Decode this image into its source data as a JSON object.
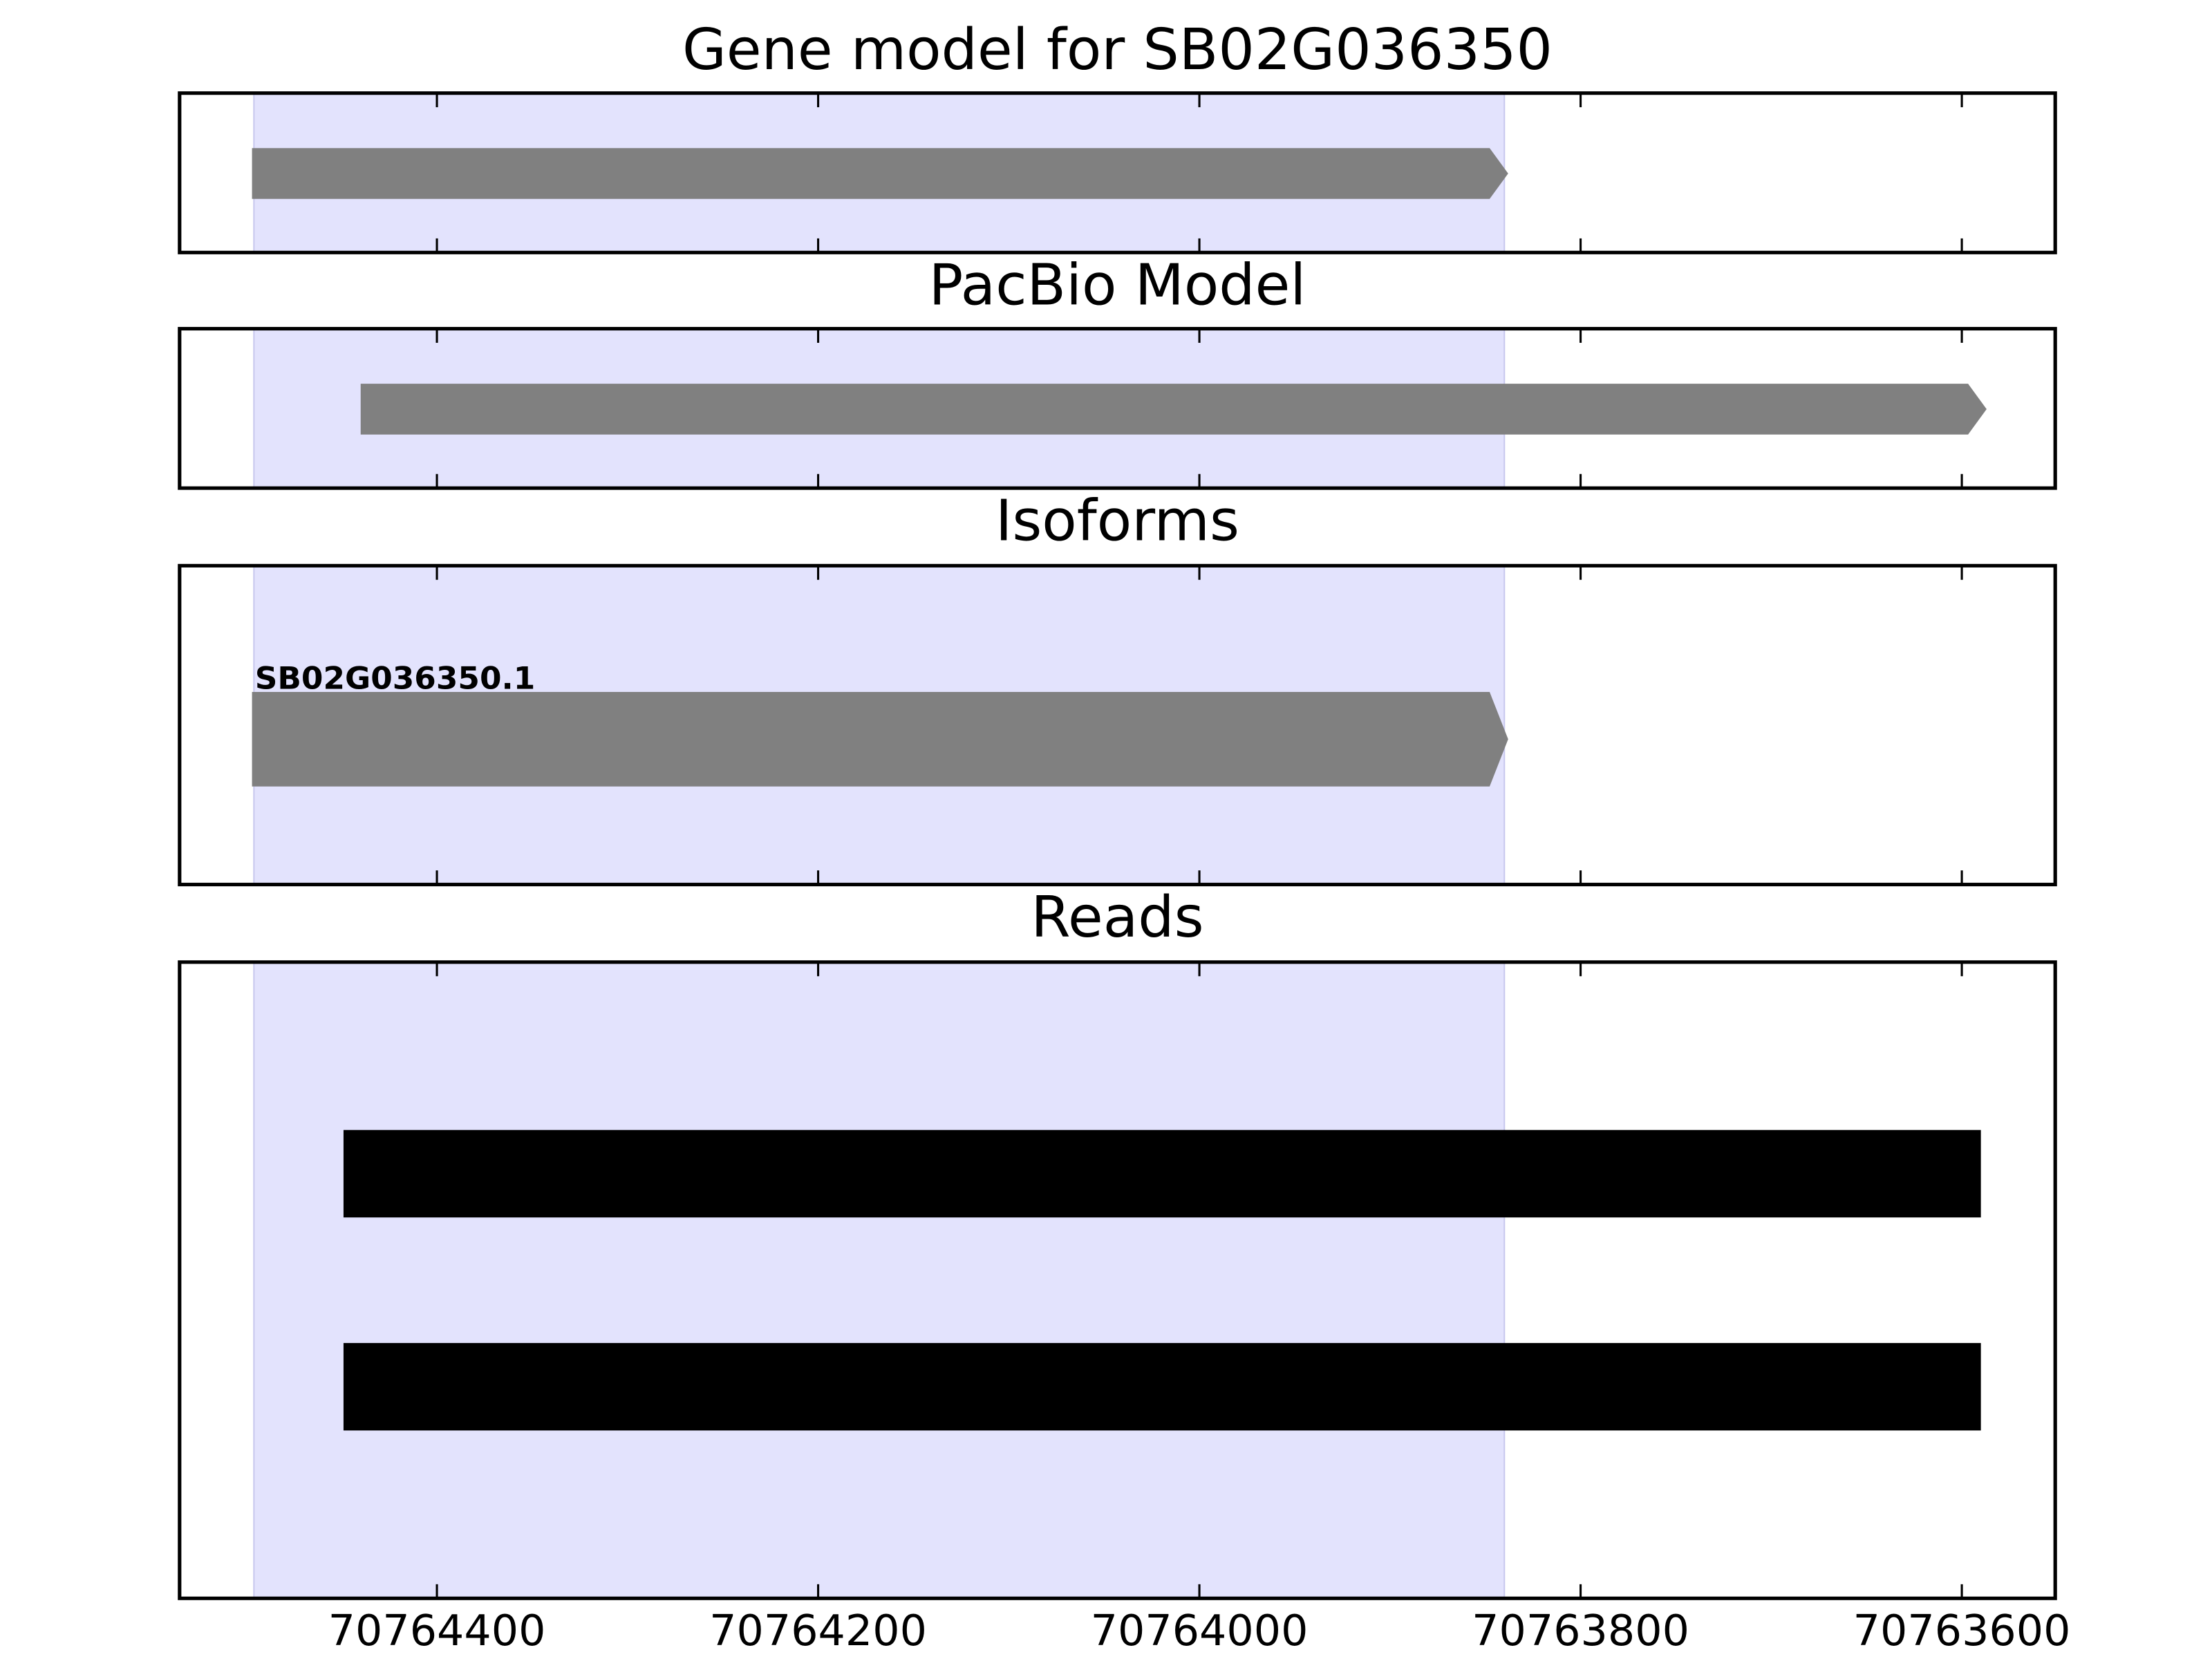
{
  "chart_data": {
    "type": "gene-tracks",
    "xlim": [
      70764535,
      70763551
    ],
    "xticks": [
      70764400,
      70764200,
      70764000,
      70763800,
      70763600
    ],
    "shaded_region": [
      70764496,
      70763840
    ],
    "shade_color": "#e3e3fd",
    "panels": [
      {
        "title": "Gene model for SB02G036350",
        "features": [
          {
            "start": 70764497,
            "end": 70763838,
            "color": "#808080",
            "shape": "arrow"
          }
        ]
      },
      {
        "title": "PacBio Model",
        "features": [
          {
            "start": 70764440,
            "end": 70763587,
            "color": "#808080",
            "shape": "arrow"
          }
        ]
      },
      {
        "title": "Isoforms",
        "features": [
          {
            "label": "SB02G036350.1",
            "start": 70764497,
            "end": 70763838,
            "color": "#808080",
            "shape": "arrow"
          }
        ]
      },
      {
        "title": "Reads",
        "features": [
          {
            "start": 70764449,
            "end": 70763590,
            "color": "#000000",
            "shape": "bar"
          },
          {
            "start": 70764449,
            "end": 70763590,
            "color": "#000000",
            "shape": "bar"
          }
        ]
      }
    ]
  }
}
